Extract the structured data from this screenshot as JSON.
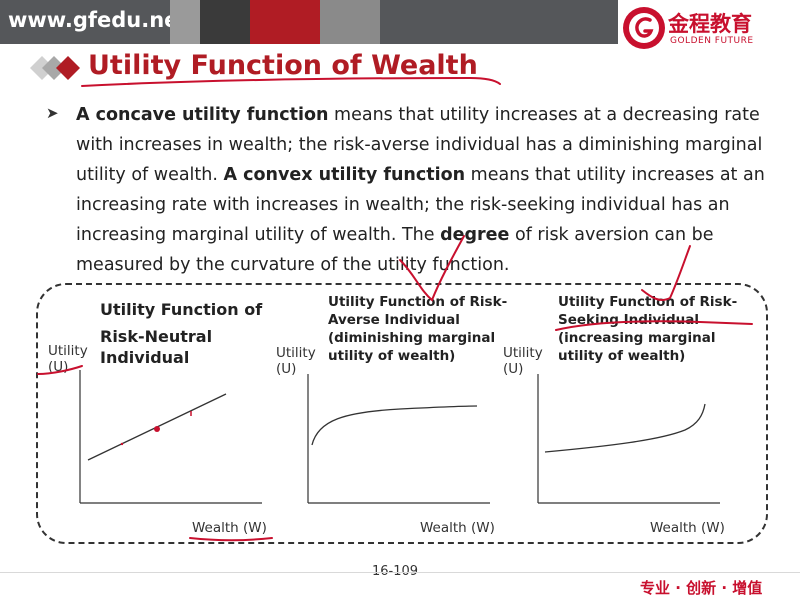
{
  "header": {
    "site": "www.gfedu.net",
    "brand_name": "金程教育",
    "brand_sub": "GOLDEN FUTURE"
  },
  "slide": {
    "title": "Utility Function of Wealth",
    "paragraph": {
      "bold1": "A concave utility function",
      "text1": " means that utility increases at a decreasing rate with increases in wealth; the risk-averse individual has a diminishing marginal utility of wealth. ",
      "bold2": "A convex utility function",
      "text2": " means that utility increases at an increasing rate with increases in wealth; the risk-seeking individual has an increasing marginal utility of wealth. The ",
      "bold3": "degree",
      "text3": " of risk aversion can be measured by the curvature of the utility function."
    },
    "panels": [
      {
        "title_line1": "Utility Function of",
        "title_line2": "Risk-Neutral",
        "title_line3": "Individual",
        "ylabel_line1": "Utility",
        "ylabel_line2": "(U)",
        "xlabel": "Wealth (W)"
      },
      {
        "title_line1": "Utility Function of Risk-",
        "title_line2": "Averse Individual",
        "title_line3": "(diminishing marginal",
        "title_line4": "utility of wealth)",
        "ylabel_line1": "Utility",
        "ylabel_line2": "(U)",
        "xlabel": "Wealth (W)"
      },
      {
        "title_line1": "Utility Function of Risk-",
        "title_line2": "Seeking Individual",
        "title_line3": "(increasing marginal",
        "title_line4": "utility of wealth)",
        "ylabel_line1": "Utility",
        "ylabel_line2": "(U)",
        "xlabel": "Wealth (W)"
      }
    ],
    "page_number": "16-109"
  },
  "footer": {
    "slogan": "专业 · 创新 · 增值"
  },
  "colors": {
    "header_bg": "#55575a",
    "title_red": "#b01c24",
    "annotation_red": "#c8102e"
  }
}
